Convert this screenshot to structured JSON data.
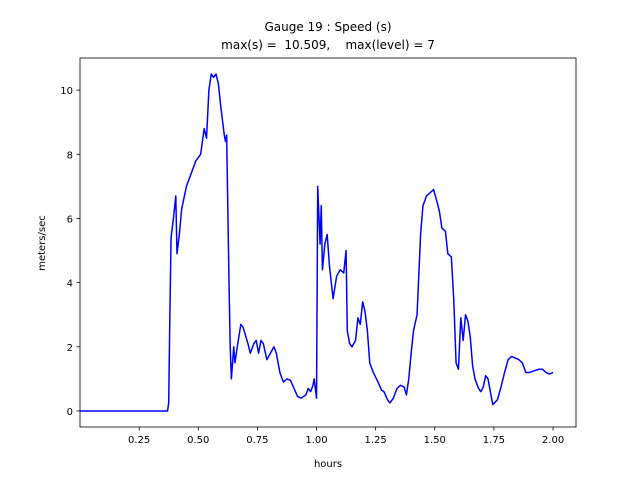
{
  "chart_data": {
    "type": "line",
    "title": "Gauge 19 : Speed (s)",
    "subtitle": "max(s) =  10.509,    max(level) = 7",
    "x_label": "hours",
    "y_label": "meters/sec",
    "xlim": [
      0.0,
      2.097
    ],
    "ylim": [
      -0.5,
      11.0
    ],
    "xticks": [
      0.25,
      {
        "value": 0.5,
        "label": "0.50"
      },
      0.75,
      {
        "value": 1.0,
        "label": "1.00"
      },
      1.25,
      {
        "value": 1.5,
        "label": "1.50"
      },
      1.75,
      {
        "value": 2.0,
        "label": "2.00"
      }
    ],
    "yticks": [
      0,
      2,
      4,
      6,
      8,
      10
    ],
    "grid": false,
    "series": [
      {
        "color": "#0000ff",
        "x": [
          0.0,
          0.37,
          0.375,
          0.38,
          0.385,
          0.395,
          0.405,
          0.41,
          0.42,
          0.43,
          0.45,
          0.47,
          0.49,
          0.51,
          0.525,
          0.535,
          0.545,
          0.555,
          0.565,
          0.575,
          0.585,
          0.595,
          0.61,
          0.615,
          0.62,
          0.63,
          0.635,
          0.64,
          0.645,
          0.65,
          0.655,
          0.665,
          0.68,
          0.69,
          0.71,
          0.72,
          0.735,
          0.745,
          0.755,
          0.765,
          0.775,
          0.79,
          0.805,
          0.82,
          0.83,
          0.845,
          0.86,
          0.875,
          0.89,
          0.905,
          0.92,
          0.935,
          0.955,
          0.965,
          0.975,
          0.985,
          0.99,
          1.0,
          1.005,
          1.015,
          1.02,
          1.025,
          1.035,
          1.045,
          1.055,
          1.07,
          1.085,
          1.1,
          1.115,
          1.125,
          1.13,
          1.14,
          1.15,
          1.165,
          1.175,
          1.185,
          1.195,
          1.205,
          1.215,
          1.225,
          1.24,
          1.26,
          1.275,
          1.285,
          1.3,
          1.31,
          1.325,
          1.34,
          1.355,
          1.37,
          1.38,
          1.39,
          1.4,
          1.41,
          1.425,
          1.44,
          1.45,
          1.465,
          1.48,
          1.495,
          1.51,
          1.52,
          1.53,
          1.545,
          1.555,
          1.57,
          1.58,
          1.59,
          1.6,
          1.61,
          1.62,
          1.63,
          1.64,
          1.65,
          1.66,
          1.67,
          1.685,
          1.695,
          1.705,
          1.715,
          1.725,
          1.735,
          1.745,
          1.765,
          1.78,
          1.795,
          1.81,
          1.825,
          1.84,
          1.855,
          1.87,
          1.885,
          1.9,
          1.92,
          1.94,
          1.955,
          1.97,
          1.985,
          2.0
        ],
        "values": [
          0,
          0,
          0.25,
          3.0,
          5.4,
          6.0,
          6.7,
          4.9,
          5.5,
          6.3,
          7.0,
          7.4,
          7.8,
          8.0,
          8.8,
          8.5,
          10.0,
          10.5,
          10.4,
          10.5,
          10.2,
          9.5,
          8.6,
          8.4,
          8.6,
          4.0,
          2.0,
          1.0,
          1.5,
          2.0,
          1.5,
          2.0,
          2.7,
          2.6,
          2.1,
          1.8,
          2.1,
          2.2,
          1.8,
          2.2,
          2.1,
          1.6,
          1.8,
          2.0,
          1.8,
          1.2,
          0.9,
          1.0,
          0.95,
          0.7,
          0.45,
          0.4,
          0.5,
          0.7,
          0.6,
          0.8,
          1.0,
          0.4,
          7.0,
          5.2,
          6.4,
          4.4,
          5.2,
          5.5,
          4.5,
          3.5,
          4.2,
          4.4,
          4.3,
          5.0,
          2.5,
          2.1,
          2.0,
          2.2,
          2.9,
          2.7,
          3.4,
          3.1,
          2.5,
          1.5,
          1.2,
          0.9,
          0.65,
          0.6,
          0.35,
          0.25,
          0.4,
          0.7,
          0.8,
          0.75,
          0.5,
          1.0,
          1.8,
          2.5,
          3.0,
          5.5,
          6.4,
          6.7,
          6.8,
          6.9,
          6.5,
          6.2,
          5.7,
          5.6,
          4.9,
          4.8,
          3.5,
          1.5,
          1.3,
          2.9,
          2.2,
          3.0,
          2.8,
          2.3,
          1.4,
          1.0,
          0.7,
          0.6,
          0.75,
          1.1,
          1.0,
          0.6,
          0.2,
          0.35,
          0.75,
          1.2,
          1.6,
          1.7,
          1.65,
          1.6,
          1.5,
          1.2,
          1.2,
          1.25,
          1.3,
          1.3,
          1.2,
          1.15,
          1.2
        ]
      }
    ]
  }
}
